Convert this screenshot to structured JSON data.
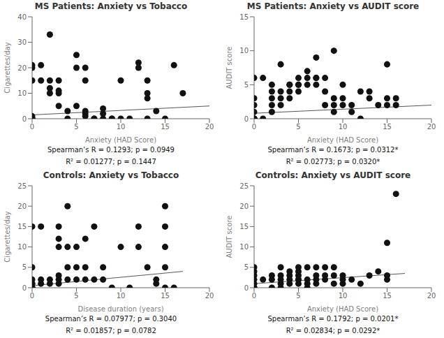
{
  "chart_data": [
    {
      "type": "scatter",
      "title": "MS Patients: Anxiety vs Tobacco",
      "x_label": "Anxiety (HAD Score)",
      "y_label": "Cigarettes/day",
      "xlim": [
        0,
        20
      ],
      "ylim": [
        0,
        40
      ],
      "xticks": [
        0,
        5,
        10,
        15,
        20
      ],
      "yticks": [
        0,
        10,
        20,
        30,
        40
      ],
      "grid": false,
      "x": [
        0,
        0,
        0,
        0,
        0,
        0,
        0,
        0,
        0,
        1,
        1,
        2,
        2,
        2,
        2,
        3,
        3,
        3,
        3,
        4,
        4,
        5,
        5,
        5,
        6,
        6,
        6,
        6,
        6,
        7,
        7,
        8,
        8,
        8,
        9,
        9,
        10,
        10,
        11,
        12,
        12,
        13,
        13,
        13,
        13,
        14,
        15,
        16,
        17
      ],
      "y": [
        0,
        0,
        0,
        1,
        15,
        20,
        21,
        0,
        0,
        15,
        21,
        10,
        12,
        15,
        33,
        5,
        10,
        11,
        15,
        3,
        0,
        5,
        20,
        25,
        1,
        2,
        3,
        15,
        20,
        0,
        0,
        0,
        4,
        2,
        0,
        0,
        0,
        15,
        0,
        20,
        22,
        0,
        8,
        10,
        15,
        3,
        0,
        21,
        10
      ],
      "color": "#111111",
      "trendline": {
        "x": [
          0,
          20
        ],
        "y": [
          1.5,
          5.0
        ],
        "color": "#555555"
      },
      "annotations": [
        "Spearman’s R = 0.1293; p = 0.0949",
        "R² = 0.01277; p = 0.1447"
      ]
    },
    {
      "type": "scatter",
      "title": "MS Patients: Anxiety vs AUDIT score",
      "x_label": "Anxiety (HAD Score)",
      "y_label": "AUDIT score",
      "xlim": [
        0,
        20
      ],
      "ylim": [
        0,
        15
      ],
      "xticks": [
        0,
        5,
        10,
        15,
        20
      ],
      "yticks": [
        0,
        5,
        10,
        15
      ],
      "grid": false,
      "x": [
        0,
        0,
        0,
        0,
        0,
        0,
        0,
        0,
        0,
        0,
        1,
        1,
        2,
        2,
        2,
        2,
        2,
        3,
        3,
        3,
        3,
        4,
        4,
        4,
        4,
        5,
        5,
        5,
        5,
        6,
        6,
        6,
        7,
        7,
        7,
        7,
        8,
        8,
        8,
        9,
        9,
        9,
        9,
        10,
        10,
        10,
        11,
        11,
        12,
        12,
        13,
        13,
        14,
        15,
        15,
        15,
        16,
        16
      ],
      "y": [
        0,
        0,
        0,
        0,
        1,
        2,
        3,
        6,
        0,
        0,
        0,
        6,
        1,
        2,
        3,
        4,
        5,
        2,
        3,
        4,
        8,
        3,
        4,
        5,
        5,
        4,
        5,
        5,
        6,
        5,
        6,
        7,
        5,
        6,
        6,
        9,
        2,
        4,
        6,
        10,
        1,
        2,
        3,
        2,
        3,
        5,
        1,
        2,
        0,
        4,
        3,
        4,
        2,
        2,
        3,
        8,
        2,
        3
      ],
      "color": "#111111",
      "trendline": {
        "x": [
          0,
          20
        ],
        "y": [
          0.8,
          2.0
        ],
        "color": "#555555"
      },
      "annotations": [
        "Spearman’s R = 0.1673; p = 0.0312*",
        "R² = 0.02773; p = 0.0320*"
      ]
    },
    {
      "type": "scatter",
      "title": "Controls: Anxiety vs Tobacco",
      "x_label": "Disease duration (years)",
      "y_label": "Cigarettes/day",
      "xlim": [
        0,
        20
      ],
      "ylim": [
        0,
        25
      ],
      "xticks": [
        0,
        5,
        10,
        15,
        20
      ],
      "yticks": [
        0,
        5,
        10,
        15,
        20,
        25
      ],
      "grid": false,
      "x": [
        0,
        0,
        0,
        0,
        0,
        0,
        0,
        0,
        0,
        1,
        1,
        1,
        2,
        2,
        3,
        3,
        3,
        3,
        3,
        3,
        4,
        4,
        4,
        4,
        5,
        5,
        5,
        6,
        6,
        6,
        7,
        7,
        8,
        8,
        9,
        10,
        11,
        12,
        12,
        13,
        14,
        14,
        15,
        15,
        15,
        15,
        15,
        16
      ],
      "y": [
        0,
        0,
        0,
        0,
        1,
        1,
        2,
        5,
        15,
        1,
        2,
        15,
        1,
        2,
        1,
        2,
        3,
        10,
        12,
        15,
        2,
        5,
        10,
        20,
        2,
        5,
        10,
        2,
        5,
        12,
        2,
        15,
        2,
        5,
        0,
        10,
        0,
        10,
        15,
        5,
        1,
        2,
        0,
        5,
        10,
        15,
        20,
        0
      ],
      "color": "#111111",
      "trendline": {
        "x": [
          0,
          17
        ],
        "y": [
          0.5,
          4.0
        ],
        "color": "#555555"
      },
      "annotations": [
        "Spearman’s R = 0.07977; p = 0.3040",
        "R² = 0.01857; p = 0.0782"
      ]
    },
    {
      "type": "scatter",
      "title": "Controls: Anxiety vs AUDIT score",
      "x_label": "Anxiety (HAD Score)",
      "y_label": "AUDIT score",
      "xlim": [
        0,
        20
      ],
      "ylim": [
        0,
        25
      ],
      "xticks": [
        0,
        5,
        10,
        15,
        20
      ],
      "yticks": [
        0,
        5,
        10,
        15,
        20,
        25
      ],
      "grid": false,
      "x": [
        0,
        0,
        0,
        0,
        0,
        0,
        0,
        0,
        1,
        2,
        2,
        2,
        3,
        3,
        3,
        3,
        3,
        4,
        4,
        4,
        4,
        5,
        5,
        5,
        5,
        5,
        5,
        6,
        6,
        6,
        6,
        7,
        7,
        7,
        7,
        8,
        8,
        8,
        9,
        9,
        9,
        10,
        10,
        10,
        11,
        12,
        13,
        14,
        15,
        15,
        15,
        16
      ],
      "y": [
        0,
        0,
        0,
        1,
        2,
        3,
        4,
        5,
        2,
        0,
        2,
        3,
        0,
        1,
        2,
        3,
        5,
        1,
        2,
        3,
        4,
        1,
        2,
        2,
        3,
        4,
        5,
        0,
        1,
        2,
        5,
        1,
        2,
        3,
        5,
        2,
        3,
        5,
        1,
        3,
        5,
        1,
        2,
        3,
        2,
        1,
        3,
        4,
        2,
        3,
        11,
        23
      ],
      "color": "#111111",
      "trendline": {
        "x": [
          0,
          17
        ],
        "y": [
          1.0,
          3.5
        ],
        "color": "#555555"
      },
      "annotations": [
        "Spearman’s R = 0.1792; p = 0.0201*",
        "R² = 0.02834; p = 0.0292*"
      ]
    }
  ]
}
